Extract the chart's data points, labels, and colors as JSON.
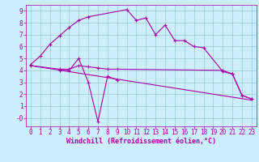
{
  "xlabel": "Windchill (Refroidissement éolien,°C)",
  "bg_color": "#cceeff",
  "line_color": "#aa00aa",
  "grid_color": "#99cccc",
  "xlim": [
    -0.5,
    23.5
  ],
  "ylim": [
    -0.7,
    9.5
  ],
  "xticks": [
    0,
    1,
    2,
    3,
    4,
    5,
    6,
    7,
    8,
    9,
    10,
    11,
    12,
    13,
    14,
    15,
    16,
    17,
    18,
    19,
    20,
    21,
    22,
    23
  ],
  "yticks": [
    0,
    1,
    2,
    3,
    4,
    5,
    6,
    7,
    8,
    9
  ],
  "series1_x": [
    0,
    1,
    2,
    3,
    4,
    5,
    6,
    10,
    11,
    12,
    13,
    14,
    15,
    16,
    17,
    18,
    20,
    21,
    22,
    23
  ],
  "series1_y": [
    4.5,
    5.2,
    6.2,
    6.9,
    7.6,
    8.2,
    8.5,
    9.1,
    8.2,
    8.4,
    7.0,
    7.8,
    6.5,
    6.5,
    6.0,
    5.9,
    3.9,
    3.7,
    1.9,
    1.6
  ],
  "series2_x": [
    3,
    4,
    5,
    6,
    7,
    8,
    9
  ],
  "series2_y": [
    4.0,
    4.0,
    5.0,
    3.0,
    -0.3,
    3.5,
    3.2
  ],
  "series3_x": [
    0,
    23
  ],
  "series3_y": [
    4.4,
    1.5
  ],
  "series4_x": [
    0,
    3,
    4,
    5,
    6,
    7,
    8,
    9,
    20,
    21,
    22,
    23
  ],
  "series4_y": [
    4.4,
    4.1,
    4.1,
    4.4,
    4.3,
    4.2,
    4.1,
    4.1,
    4.0,
    3.7,
    1.9,
    1.6
  ],
  "tick_fontsize": 5.5,
  "xlabel_fontsize": 6.0
}
